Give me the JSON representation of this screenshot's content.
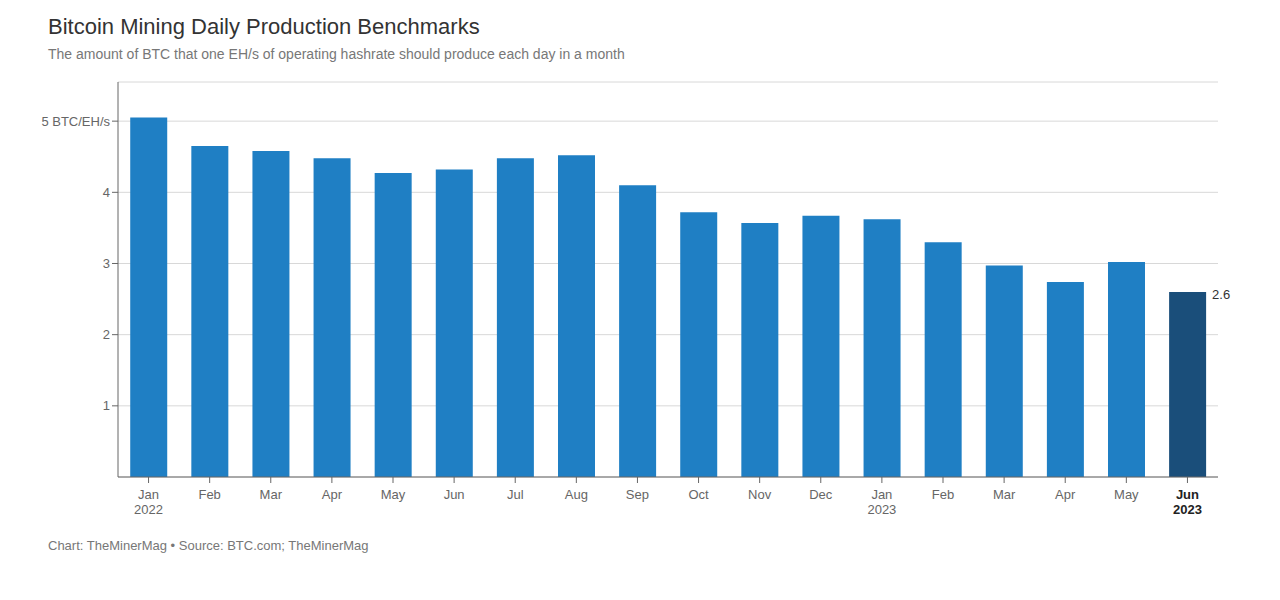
{
  "chart_data": {
    "type": "bar",
    "title": "Bitcoin Mining Daily Production Benchmarks",
    "subtitle": "The amount of BTC that one EH/s of operating hashrate should produce each day in a month",
    "footer": "Chart: TheMinerMag • Source: BTC.com; TheMinerMag",
    "categories": [
      "Jan\n2022",
      "Feb",
      "Mar",
      "Apr",
      "May",
      "Jun",
      "Jul",
      "Aug",
      "Sep",
      "Oct",
      "Nov",
      "Dec",
      "Jan\n2023",
      "Feb",
      "Mar",
      "Apr",
      "May",
      "Jun\n2023"
    ],
    "values": [
      5.05,
      4.65,
      4.58,
      4.48,
      4.27,
      4.32,
      4.48,
      4.52,
      4.1,
      3.72,
      3.57,
      3.67,
      3.62,
      3.3,
      2.97,
      2.74,
      3.02,
      2.6
    ],
    "value_labels": [
      null,
      null,
      null,
      null,
      null,
      null,
      null,
      null,
      null,
      null,
      null,
      null,
      null,
      null,
      null,
      null,
      null,
      "2.6"
    ],
    "colors": [
      "#1f7fc4",
      "#1f7fc4",
      "#1f7fc4",
      "#1f7fc4",
      "#1f7fc4",
      "#1f7fc4",
      "#1f7fc4",
      "#1f7fc4",
      "#1f7fc4",
      "#1f7fc4",
      "#1f7fc4",
      "#1f7fc4",
      "#1f7fc4",
      "#1f7fc4",
      "#1f7fc4",
      "#1f7fc4",
      "#1f7fc4",
      "#1a4e7a"
    ],
    "ylim": [
      0,
      5.55
    ],
    "yticks": [
      1,
      2,
      3,
      4,
      {
        "value": 5,
        "label": "5 BTC/EH/s"
      }
    ],
    "grid": true
  }
}
